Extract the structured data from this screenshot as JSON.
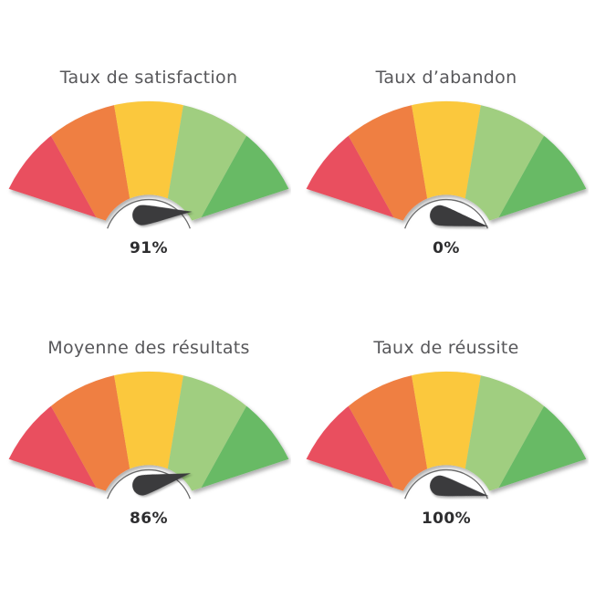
{
  "chart_data": [
    {
      "type": "gauge",
      "title": "Taux de satisfaction",
      "value": 91,
      "value_label": "91%",
      "min": 0,
      "max": 100,
      "segments": 5,
      "needle_angle_deg": -4
    },
    {
      "type": "gauge",
      "title": "Taux d’abandon",
      "value": 0,
      "value_label": "0%",
      "min": 0,
      "max": 100,
      "segments": 5,
      "needle_angle_deg": 13
    },
    {
      "type": "gauge",
      "title": "Moyenne des résultats",
      "value": 86,
      "value_label": "86%",
      "min": 0,
      "max": 100,
      "segments": 5,
      "needle_angle_deg": -14
    },
    {
      "type": "gauge",
      "title": "Taux de réussite",
      "value": 100,
      "value_label": "100%",
      "min": 0,
      "max": 100,
      "segments": 5,
      "needle_angle_deg": 12
    }
  ],
  "style": {
    "background": "#ffffff",
    "segment_colors": [
      "#e94f5e",
      "#ef7f42",
      "#fbc83c",
      "#a0ce80",
      "#68ba65"
    ],
    "needle_color": "#3a3a3c",
    "title_color": "#57575a",
    "value_color": "#2d2d2f",
    "arc_line_color": "#6a6a6a"
  }
}
